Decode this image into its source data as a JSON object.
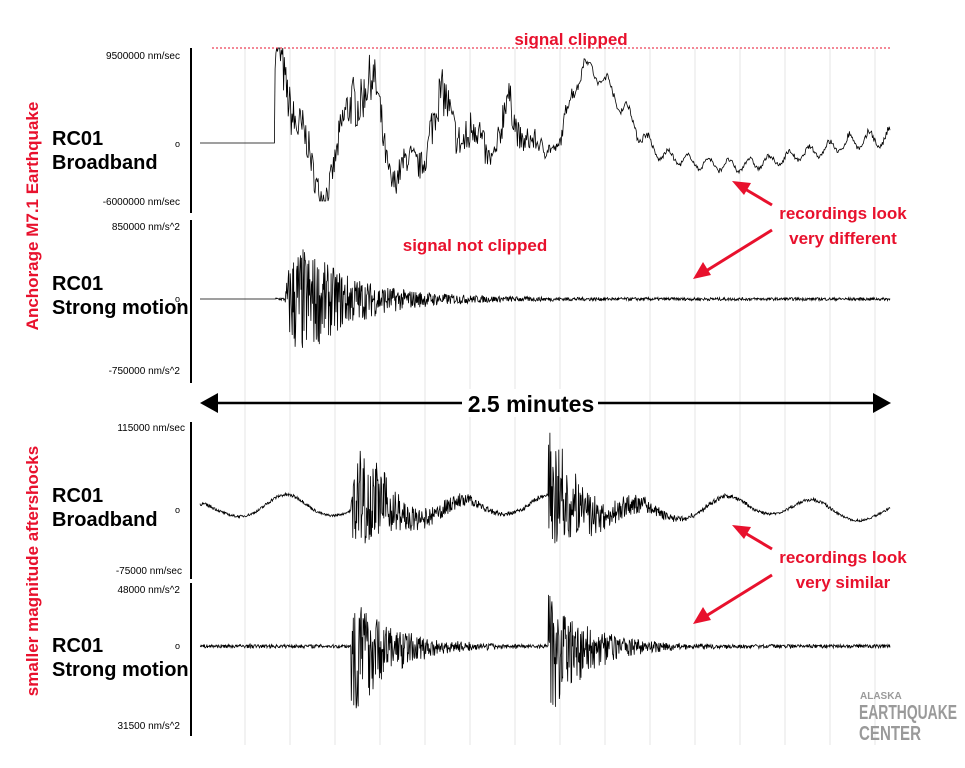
{
  "colors": {
    "annotation": "#e8112d",
    "trace": "#000000",
    "axis": "#000000",
    "grid": "#e6e6e6",
    "logo": "#9a9a9a"
  },
  "side_labels": {
    "mainshock": "Anchorage M7.1 Earthquake",
    "aftershocks": "smaller magnitude aftershocks"
  },
  "panels": [
    {
      "station": "RC01",
      "sensor": "Broadband",
      "top_label": "9500000 nm/sec",
      "zero_label": "o",
      "bottom_label": "-6000000 nm/sec"
    },
    {
      "station": "RC01",
      "sensor": "Strong motion",
      "top_label": "850000 nm/s^2",
      "zero_label": "o",
      "bottom_label": "-750000 nm/s^2"
    },
    {
      "station": "RC01",
      "sensor": "Broadband",
      "top_label": "115000 nm/sec",
      "zero_label": "o",
      "bottom_label": "-75000 nm/sec"
    },
    {
      "station": "RC01",
      "sensor": "Strong motion",
      "top_label": "48000 nm/s^2",
      "zero_label": "o",
      "bottom_label": "31500 nm/s^2"
    }
  ],
  "annotations": {
    "clipped": "signal clipped",
    "not_clipped": "signal not clipped",
    "different_line1": "recordings look",
    "different_line2": "very different",
    "similar_line1": "recordings look",
    "similar_line2": "very similar",
    "duration": "2.5 minutes"
  },
  "logo": {
    "line1": "ALASKA",
    "line2": "EARTHQUAKE",
    "line3": "CENTER"
  },
  "chart_data": {
    "type": "line",
    "duration_minutes": 2.5,
    "grid": true,
    "series": [
      {
        "values": [
          0,
          0,
          0.75,
          -0.8,
          0.95,
          -1.0,
          0.9,
          -0.85,
          1.0,
          -0.6,
          0.95,
          0.4,
          -0.2,
          -0.35,
          -0.4,
          -0.3,
          -0.15,
          0.0,
          0.05
        ]
      },
      {
        "values": [
          0,
          0,
          0.85,
          -1.0,
          0.45,
          -0.25,
          0.08,
          0.04,
          0.02,
          0.02,
          0.02,
          0.02,
          0.02,
          0.02,
          0.02,
          0.02,
          0.03,
          0.02,
          0.02
        ]
      },
      {
        "values": [
          0.08,
          -0.12,
          0.1,
          0.9,
          -0.85,
          0.6,
          -0.35,
          0.2,
          0.9,
          -0.85,
          0.55,
          -0.3,
          0.2,
          0.15,
          0.1,
          0.1,
          0.08,
          0.08,
          0.1
        ]
      },
      {
        "values": [
          0.02,
          0.02,
          0.02,
          0.85,
          -1.0,
          0.3,
          0.1,
          0.05,
          0.8,
          -1.0,
          0.3,
          0.12,
          0.08,
          0.05,
          0.04,
          0.03,
          0.02,
          0.02,
          0.08
        ]
      }
    ]
  }
}
